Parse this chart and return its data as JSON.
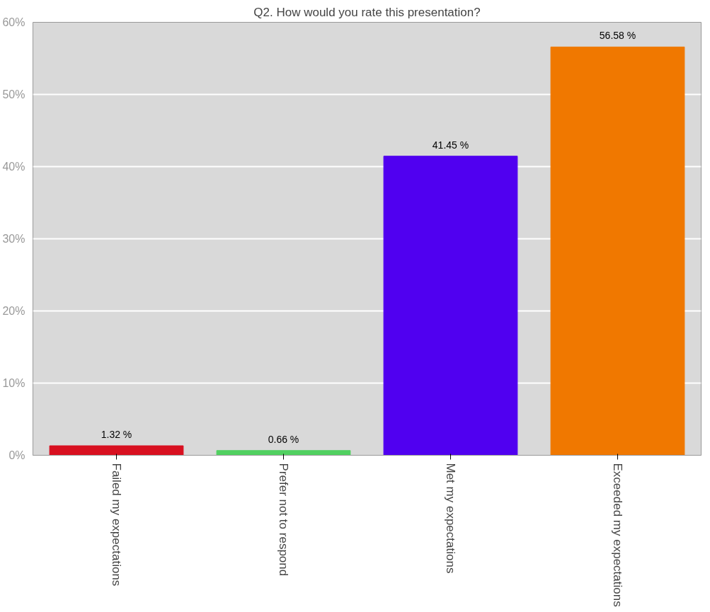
{
  "chart_data": {
    "type": "bar",
    "title": "Q2. How would you rate this presentation?",
    "categories": [
      "Failed my expectations",
      "Prefer not to respond",
      "Met my expectations",
      "Exceeded my expectations"
    ],
    "values": [
      1.32,
      0.66,
      41.45,
      56.58
    ],
    "colors": [
      "#d81020",
      "#50d060",
      "#5000f0",
      "#f07800"
    ],
    "value_labels": [
      "1.32 %",
      "0.66 %",
      "41.45 %",
      "56.58 %"
    ],
    "ylim": [
      0,
      60
    ],
    "yticks": [
      {
        "value": 0,
        "label": "0%"
      },
      {
        "value": 10,
        "label": "10%"
      },
      {
        "value": 20,
        "label": "20%"
      },
      {
        "value": 30,
        "label": "30%"
      },
      {
        "value": 40,
        "label": "40%"
      },
      {
        "value": 50,
        "label": "50%"
      },
      {
        "value": 60,
        "label": "60%"
      }
    ],
    "grid": "y"
  }
}
